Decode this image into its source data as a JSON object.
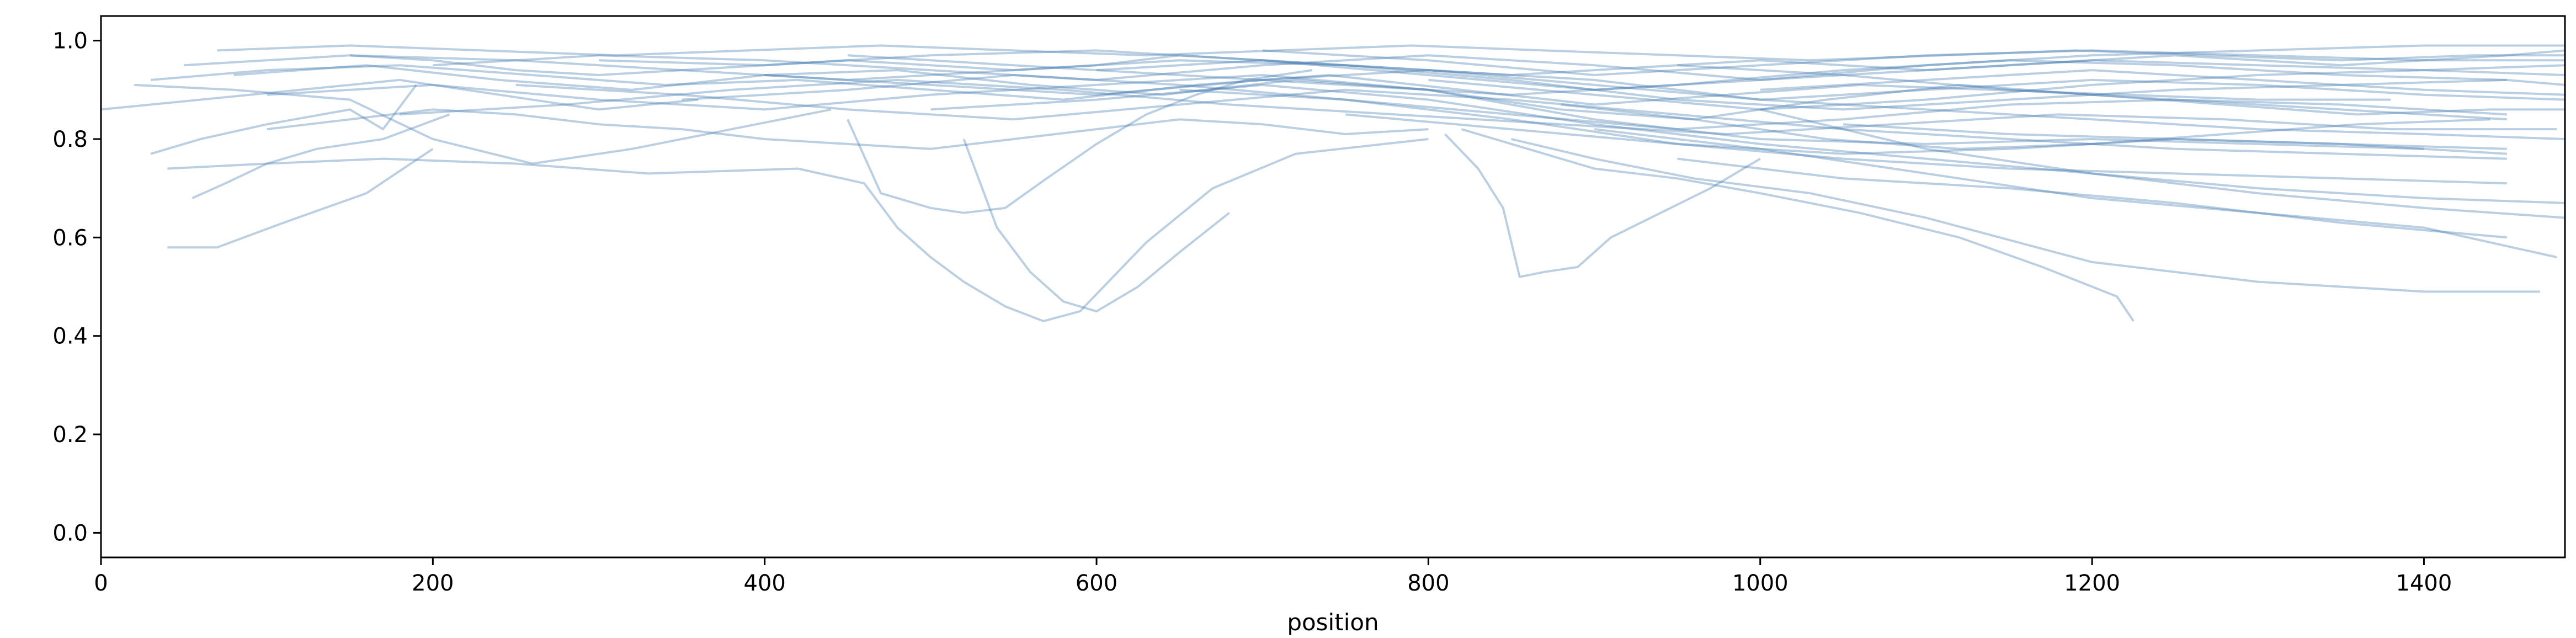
{
  "chart_data": {
    "type": "line",
    "title": "",
    "xlabel": "position",
    "ylabel": "",
    "xlim": [
      0,
      1485
    ],
    "ylim": [
      -0.05,
      1.05
    ],
    "x_ticks": [
      0,
      200,
      400,
      600,
      800,
      1000,
      1200,
      1400
    ],
    "y_ticks": [
      0.0,
      0.2,
      0.4,
      0.6,
      0.8,
      1.0
    ],
    "x_tick_labels": [
      "0",
      "200",
      "400",
      "600",
      "800",
      "1000",
      "1200",
      "1400"
    ],
    "y_tick_labels": [
      "0.0",
      "0.2",
      "0.4",
      "0.6",
      "0.8",
      "1.0"
    ],
    "grid": false,
    "legend": "none",
    "line_color": "#3d76b0",
    "line_opacity": 0.35,
    "series": [
      {
        "x": [
          40,
          70,
          110,
          160,
          200
        ],
        "y": [
          0.58,
          0.58,
          0.63,
          0.69,
          0.78
        ]
      },
      {
        "x": [
          55,
          75,
          100,
          130,
          170,
          210
        ],
        "y": [
          0.68,
          0.71,
          0.75,
          0.78,
          0.8,
          0.85
        ]
      },
      {
        "x": [
          30,
          60,
          100,
          150,
          170,
          190
        ],
        "y": [
          0.77,
          0.8,
          0.83,
          0.86,
          0.82,
          0.91
        ]
      },
      {
        "x": [
          40,
          100,
          170,
          250,
          330,
          420,
          460,
          480,
          500,
          520,
          545,
          568,
          590,
          630,
          670,
          720,
          800
        ],
        "y": [
          0.74,
          0.75,
          0.76,
          0.75,
          0.73,
          0.74,
          0.71,
          0.62,
          0.56,
          0.51,
          0.46,
          0.43,
          0.45,
          0.59,
          0.7,
          0.77,
          0.8
        ]
      },
      {
        "x": [
          450,
          470,
          500,
          520,
          545,
          570,
          600,
          630,
          660,
          690,
          730
        ],
        "y": [
          0.84,
          0.69,
          0.66,
          0.65,
          0.66,
          0.72,
          0.79,
          0.85,
          0.89,
          0.92,
          0.94
        ]
      },
      {
        "x": [
          520,
          540,
          560,
          580,
          600,
          625,
          650,
          680
        ],
        "y": [
          0.8,
          0.62,
          0.53,
          0.47,
          0.45,
          0.5,
          0.57,
          0.65
        ]
      },
      {
        "x": [
          810,
          830,
          845,
          855,
          870,
          890,
          910,
          940,
          970,
          1000
        ],
        "y": [
          0.81,
          0.74,
          0.66,
          0.52,
          0.53,
          0.54,
          0.6,
          0.65,
          0.7,
          0.76
        ]
      },
      {
        "x": [
          820,
          860,
          900,
          950,
          1000,
          1060,
          1120,
          1170,
          1215,
          1225
        ],
        "y": [
          0.82,
          0.78,
          0.74,
          0.72,
          0.69,
          0.65,
          0.6,
          0.54,
          0.48,
          0.43
        ]
      },
      {
        "x": [
          850,
          900,
          960,
          1030,
          1100,
          1200,
          1300,
          1400,
          1470
        ],
        "y": [
          0.8,
          0.76,
          0.72,
          0.69,
          0.64,
          0.55,
          0.51,
          0.49,
          0.49
        ]
      },
      {
        "x": [
          900,
          1000,
          1100,
          1200,
          1300,
          1400,
          1480
        ],
        "y": [
          0.82,
          0.78,
          0.73,
          0.68,
          0.65,
          0.62,
          0.56
        ]
      },
      {
        "x": [
          950,
          1050,
          1150,
          1250,
          1350,
          1450
        ],
        "y": [
          0.76,
          0.72,
          0.7,
          0.67,
          0.63,
          0.6
        ]
      },
      {
        "x": [
          1000,
          1100,
          1200,
          1300,
          1400,
          1485
        ],
        "y": [
          0.86,
          0.78,
          0.73,
          0.69,
          0.66,
          0.64
        ]
      },
      {
        "x": [
          100,
          150,
          200,
          250,
          300,
          350,
          400,
          450,
          500,
          550,
          600,
          650,
          700,
          750,
          800
        ],
        "y": [
          0.82,
          0.84,
          0.86,
          0.85,
          0.83,
          0.82,
          0.8,
          0.79,
          0.78,
          0.8,
          0.82,
          0.84,
          0.83,
          0.81,
          0.82
        ]
      },
      {
        "x": [
          20,
          80,
          150,
          200,
          260,
          320,
          380,
          440
        ],
        "y": [
          0.91,
          0.9,
          0.88,
          0.8,
          0.75,
          0.78,
          0.82,
          0.86
        ]
      },
      {
        "x": [
          0,
          60,
          120,
          180,
          240,
          300,
          360
        ],
        "y": [
          0.86,
          0.88,
          0.9,
          0.92,
          0.89,
          0.86,
          0.88
        ]
      },
      {
        "x": [
          50,
          100,
          150,
          200,
          250,
          300,
          350,
          400,
          450,
          500,
          550,
          600,
          650,
          700,
          750,
          800,
          850,
          900,
          950,
          1000,
          1050,
          1100,
          1150,
          1200,
          1250,
          1300,
          1350,
          1400,
          1450,
          1485
        ],
        "y": [
          0.95,
          0.96,
          0.97,
          0.96,
          0.94,
          0.93,
          0.94,
          0.95,
          0.96,
          0.95,
          0.94,
          0.95,
          0.97,
          0.96,
          0.95,
          0.94,
          0.93,
          0.94,
          0.95,
          0.96,
          0.95,
          0.94,
          0.95,
          0.96,
          0.97,
          0.96,
          0.95,
          0.96,
          0.97,
          0.98
        ]
      },
      {
        "x": [
          30,
          100,
          180,
          260,
          340,
          420,
          500,
          580,
          660,
          740,
          820,
          900,
          980,
          1060,
          1140,
          1220,
          1300,
          1380
        ],
        "y": [
          0.92,
          0.94,
          0.95,
          0.93,
          0.91,
          0.92,
          0.9,
          0.88,
          0.91,
          0.93,
          0.9,
          0.87,
          0.89,
          0.91,
          0.9,
          0.89,
          0.88,
          0.88
        ]
      },
      {
        "x": [
          70,
          150,
          230,
          310,
          390,
          470,
          550,
          630,
          710,
          790,
          870,
          950,
          1030,
          1110,
          1190,
          1270,
          1350,
          1430,
          1485
        ],
        "y": [
          0.98,
          0.99,
          0.98,
          0.97,
          0.98,
          0.99,
          0.98,
          0.97,
          0.98,
          0.99,
          0.98,
          0.97,
          0.96,
          0.97,
          0.98,
          0.97,
          0.96,
          0.97,
          0.97
        ]
      },
      {
        "x": [
          80,
          160,
          240,
          320,
          400,
          480,
          560,
          640,
          720,
          800,
          880,
          960,
          1040,
          1120,
          1200,
          1280,
          1360,
          1440,
          1485
        ],
        "y": [
          0.93,
          0.95,
          0.92,
          0.9,
          0.93,
          0.94,
          0.91,
          0.89,
          0.92,
          0.9,
          0.86,
          0.84,
          0.88,
          0.91,
          0.89,
          0.87,
          0.85,
          0.86,
          0.86
        ]
      },
      {
        "x": [
          100,
          200,
          300,
          400,
          500,
          600,
          700,
          800,
          900,
          1000,
          1100,
          1200,
          1300,
          1400
        ],
        "y": [
          0.89,
          0.91,
          0.88,
          0.86,
          0.89,
          0.91,
          0.93,
          0.9,
          0.84,
          0.8,
          0.79,
          0.8,
          0.79,
          0.78
        ]
      },
      {
        "x": [
          150,
          250,
          350,
          450,
          550,
          650,
          750,
          850,
          950,
          1050,
          1150,
          1250,
          1350,
          1450
        ],
        "y": [
          0.97,
          0.96,
          0.94,
          0.92,
          0.94,
          0.96,
          0.95,
          0.92,
          0.88,
          0.86,
          0.88,
          0.9,
          0.91,
          0.92
        ]
      },
      {
        "x": [
          180,
          280,
          380,
          480,
          580,
          680,
          780,
          880,
          980,
          1080,
          1180,
          1280,
          1380,
          1480
        ],
        "y": [
          0.85,
          0.87,
          0.9,
          0.92,
          0.9,
          0.87,
          0.85,
          0.83,
          0.81,
          0.83,
          0.85,
          0.84,
          0.82,
          0.82
        ]
      },
      {
        "x": [
          200,
          300,
          400,
          500,
          600,
          700,
          800,
          900,
          1000,
          1100,
          1200,
          1300,
          1400,
          1485
        ],
        "y": [
          0.95,
          0.97,
          0.96,
          0.94,
          0.92,
          0.95,
          0.97,
          0.95,
          0.92,
          0.94,
          0.96,
          0.95,
          0.94,
          0.95
        ]
      },
      {
        "x": [
          250,
          350,
          450,
          550,
          650,
          750,
          850,
          950,
          1050,
          1150,
          1250,
          1350,
          1450
        ],
        "y": [
          0.91,
          0.89,
          0.86,
          0.84,
          0.87,
          0.9,
          0.88,
          0.85,
          0.82,
          0.8,
          0.78,
          0.77,
          0.76
        ]
      },
      {
        "x": [
          300,
          400,
          500,
          600,
          700,
          800,
          900,
          1000,
          1100,
          1200,
          1300,
          1400,
          1485
        ],
        "y": [
          0.96,
          0.95,
          0.97,
          0.98,
          0.96,
          0.93,
          0.9,
          0.92,
          0.95,
          0.97,
          0.98,
          0.99,
          0.99
        ]
      },
      {
        "x": [
          350,
          450,
          550,
          650,
          750,
          850,
          950,
          1050,
          1150,
          1250,
          1350,
          1450
        ],
        "y": [
          0.88,
          0.9,
          0.93,
          0.91,
          0.88,
          0.84,
          0.79,
          0.76,
          0.74,
          0.73,
          0.72,
          0.71
        ]
      },
      {
        "x": [
          400,
          500,
          600,
          700,
          800,
          900,
          1000,
          1100,
          1200,
          1300,
          1400,
          1485
        ],
        "y": [
          0.93,
          0.91,
          0.89,
          0.92,
          0.94,
          0.92,
          0.88,
          0.86,
          0.84,
          0.82,
          0.81,
          0.8
        ]
      },
      {
        "x": [
          450,
          550,
          650,
          750,
          850,
          950,
          1050,
          1150,
          1250,
          1350,
          1450,
          1485
        ],
        "y": [
          0.97,
          0.95,
          0.93,
          0.91,
          0.89,
          0.91,
          0.94,
          0.96,
          0.95,
          0.93,
          0.92,
          0.91
        ]
      },
      {
        "x": [
          500,
          600,
          700,
          800,
          900,
          1000,
          1100,
          1200,
          1300,
          1400,
          1485
        ],
        "y": [
          0.86,
          0.88,
          0.91,
          0.88,
          0.83,
          0.79,
          0.76,
          0.73,
          0.7,
          0.68,
          0.67
        ]
      },
      {
        "x": [
          600,
          700,
          800,
          900,
          1000,
          1100,
          1200,
          1300,
          1400,
          1485
        ],
        "y": [
          0.94,
          0.96,
          0.94,
          0.91,
          0.88,
          0.9,
          0.92,
          0.91,
          0.89,
          0.88
        ]
      },
      {
        "x": [
          650,
          750,
          850,
          950,
          1050,
          1150,
          1250,
          1350,
          1450
        ],
        "y": [
          0.9,
          0.88,
          0.85,
          0.82,
          0.84,
          0.87,
          0.88,
          0.86,
          0.84
        ]
      },
      {
        "x": [
          700,
          800,
          900,
          1000,
          1100,
          1200,
          1300,
          1400,
          1485
        ],
        "y": [
          0.98,
          0.96,
          0.93,
          0.95,
          0.97,
          0.98,
          0.97,
          0.96,
          0.96
        ]
      },
      {
        "x": [
          750,
          850,
          950,
          1050,
          1150,
          1250,
          1350,
          1450
        ],
        "y": [
          0.85,
          0.82,
          0.79,
          0.77,
          0.78,
          0.8,
          0.79,
          0.77
        ]
      },
      {
        "x": [
          800,
          900,
          1000,
          1100,
          1200,
          1300,
          1400,
          1485
        ],
        "y": [
          0.92,
          0.89,
          0.86,
          0.88,
          0.91,
          0.93,
          0.94,
          0.93
        ]
      },
      {
        "x": [
          880,
          960,
          1040,
          1120,
          1200,
          1280,
          1360,
          1440
        ],
        "y": [
          0.87,
          0.84,
          0.8,
          0.78,
          0.79,
          0.81,
          0.83,
          0.84
        ]
      },
      {
        "x": [
          950,
          1050,
          1150,
          1250,
          1350,
          1450
        ],
        "y": [
          0.95,
          0.93,
          0.9,
          0.88,
          0.87,
          0.85
        ]
      },
      {
        "x": [
          1000,
          1100,
          1200,
          1300,
          1400,
          1485
        ],
        "y": [
          0.9,
          0.92,
          0.94,
          0.92,
          0.9,
          0.89
        ]
      },
      {
        "x": [
          1050,
          1150,
          1250,
          1350,
          1450
        ],
        "y": [
          0.83,
          0.81,
          0.8,
          0.79,
          0.78
        ]
      }
    ]
  }
}
